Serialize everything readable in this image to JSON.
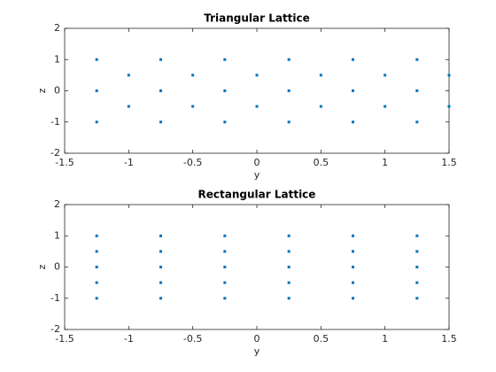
{
  "chart_data": [
    {
      "type": "scatter",
      "title": "Triangular Lattice",
      "xlabel": "y",
      "ylabel": "z",
      "color": "#0072bd",
      "x": [
        -1.25,
        -1.25,
        -1.25,
        -1,
        -1,
        -0.75,
        -0.75,
        -0.75,
        -0.5,
        -0.5,
        -0.25,
        -0.25,
        -0.25,
        0,
        0,
        0.25,
        0.25,
        0.25,
        0.5,
        0.5,
        0.75,
        0.75,
        0.75,
        1,
        1,
        1.25,
        1.25,
        1.25,
        1.5,
        1.5
      ],
      "y": [
        1,
        0,
        -1,
        0.5,
        -0.5,
        1,
        0,
        -1,
        0.5,
        -0.5,
        1,
        0,
        -1,
        0.5,
        -0.5,
        1,
        0,
        -1,
        0.5,
        -0.5,
        1,
        0,
        -1,
        0.5,
        -0.5,
        1,
        0,
        -1,
        0.5,
        -0.5
      ],
      "xlim": [
        -1.5,
        1.5
      ],
      "xticks": [
        -1.5,
        -1,
        -0.5,
        0,
        0.5,
        1,
        1.5
      ],
      "ylim": [
        -2,
        2
      ],
      "yticks": [
        -2,
        -1,
        0,
        1,
        2
      ]
    },
    {
      "type": "scatter",
      "title": "Rectangular Lattice",
      "xlabel": "y",
      "ylabel": "z",
      "color": "#0072bd",
      "x": [
        -1.25,
        -1.25,
        -1.25,
        -1.25,
        -1.25,
        -0.75,
        -0.75,
        -0.75,
        -0.75,
        -0.75,
        -0.25,
        -0.25,
        -0.25,
        -0.25,
        -0.25,
        0.25,
        0.25,
        0.25,
        0.25,
        0.25,
        0.75,
        0.75,
        0.75,
        0.75,
        0.75,
        1.25,
        1.25,
        1.25,
        1.25,
        1.25
      ],
      "y": [
        1,
        0.5,
        0,
        -0.5,
        -1,
        1,
        0.5,
        0,
        -0.5,
        -1,
        1,
        0.5,
        0,
        -0.5,
        -1,
        1,
        0.5,
        0,
        -0.5,
        -1,
        1,
        0.5,
        0,
        -0.5,
        -1,
        1,
        0.5,
        0,
        -0.5,
        -1
      ],
      "xlim": [
        -1.5,
        1.5
      ],
      "xticks": [
        -1.5,
        -1,
        -0.5,
        0,
        0.5,
        1,
        1.5
      ],
      "ylim": [
        -2,
        2
      ],
      "yticks": [
        -2,
        -1,
        0,
        1,
        2
      ]
    }
  ]
}
